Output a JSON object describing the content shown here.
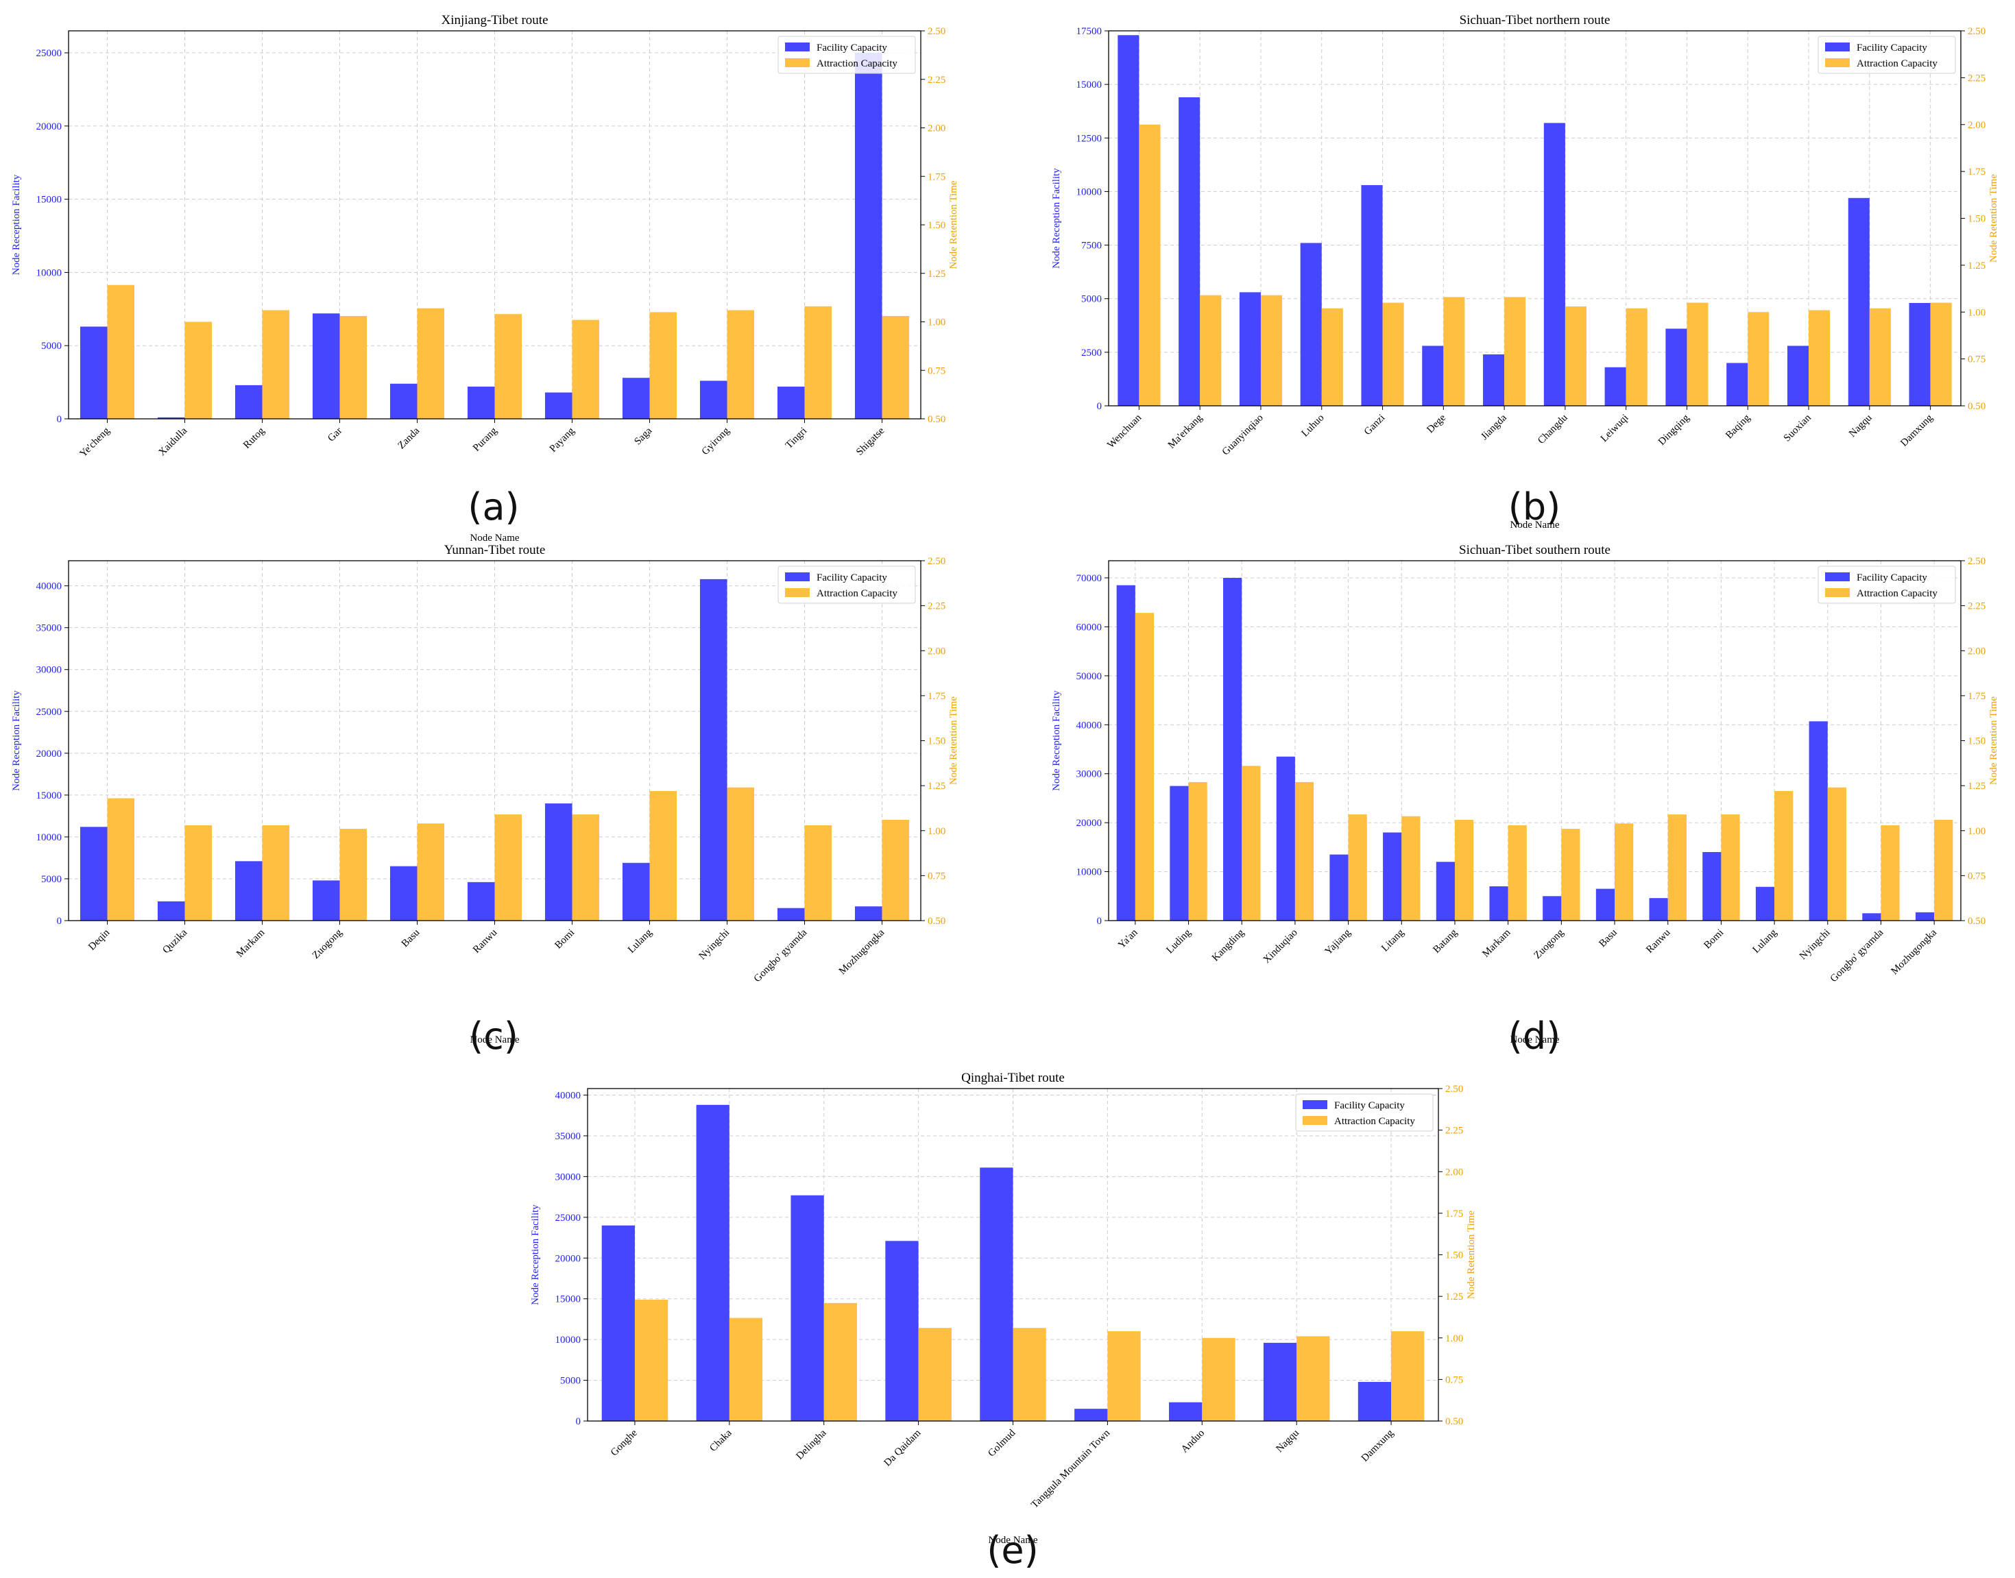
{
  "colors": {
    "facility": "#4646ff",
    "attraction": "#ffbf40",
    "left_axis": "#1f1fff",
    "right_axis": "#f0a000",
    "grid": "#cccccc"
  },
  "chart_data": [
    {
      "type": "bar",
      "panel": "(a)",
      "title": "Xinjiang-Tibet route",
      "xlabel": "Node Name",
      "ylabel": "Node Reception Facility",
      "ylabel_right": "Node Retention Time",
      "ylim": [
        0,
        26500
      ],
      "yticks": [
        0,
        5000,
        10000,
        15000,
        20000,
        25000
      ],
      "ylim_right": [
        0.5,
        2.5
      ],
      "yticks_right": [
        0.5,
        0.75,
        1.0,
        1.25,
        1.5,
        1.75,
        2.0,
        2.25,
        2.5
      ],
      "legend": [
        "Facility Capacity",
        "Attraction Capacity"
      ],
      "legend_position": "top-right",
      "categories": [
        "Ye'cheng",
        "Xaidulla",
        "Rutog",
        "Gar",
        "Zanda",
        "Purang",
        "Payang",
        "Saga",
        "Gyirong",
        "Tingri",
        "Shigatse"
      ],
      "series": [
        {
          "name": "Facility Capacity",
          "axis": "left",
          "values": [
            6300,
            100,
            2300,
            7200,
            2400,
            2200,
            1800,
            2800,
            2600,
            2200,
            25000
          ]
        },
        {
          "name": "Attraction Capacity",
          "axis": "right",
          "values": [
            1.19,
            1.0,
            1.06,
            1.03,
            1.07,
            1.04,
            1.01,
            1.05,
            1.06,
            1.08,
            1.03
          ]
        }
      ]
    },
    {
      "type": "bar",
      "panel": "(b)",
      "title": "Sichuan-Tibet northern route",
      "xlabel": "Node Name",
      "ylabel": "Node Reception Facility",
      "ylabel_right": "Node Retention Time",
      "ylim": [
        0,
        17500
      ],
      "yticks": [
        0,
        2500,
        5000,
        7500,
        10000,
        12500,
        15000,
        17500
      ],
      "ylim_right": [
        0.5,
        2.5
      ],
      "yticks_right": [
        0.5,
        0.75,
        1.0,
        1.25,
        1.5,
        1.75,
        2.0,
        2.25,
        2.5
      ],
      "legend": [
        "Facility Capacity",
        "Attraction Capacity"
      ],
      "legend_position": "top-right",
      "categories": [
        "Wenchuan",
        "Ma'erkang",
        "Guanyinqiao",
        "Luhuo",
        "Ganzi",
        "Dege",
        "Jiangda",
        "Changdu",
        "Leiwuqi",
        "Dingqing",
        "Baqing",
        "Suoxian",
        "Nagqu",
        "Damxung"
      ],
      "series": [
        {
          "name": "Facility Capacity",
          "axis": "left",
          "values": [
            17300,
            14400,
            5300,
            7600,
            10300,
            2800,
            2400,
            13200,
            1800,
            3600,
            2000,
            2800,
            9700,
            4800
          ]
        },
        {
          "name": "Attraction Capacity",
          "axis": "right",
          "values": [
            2.0,
            1.09,
            1.09,
            1.02,
            1.05,
            1.08,
            1.08,
            1.03,
            1.02,
            1.05,
            1.0,
            1.01,
            1.02,
            1.05
          ]
        }
      ]
    },
    {
      "type": "bar",
      "panel": "(c)",
      "title": "Yunnan-Tibet route",
      "xlabel": "Node Name",
      "ylabel": "Node Reception Facility",
      "ylabel_right": "Node Retention Time",
      "ylim": [
        0,
        43000
      ],
      "yticks": [
        0,
        5000,
        10000,
        15000,
        20000,
        25000,
        30000,
        35000,
        40000
      ],
      "ylim_right": [
        0.5,
        2.5
      ],
      "yticks_right": [
        0.5,
        0.75,
        1.0,
        1.25,
        1.5,
        1.75,
        2.0,
        2.25,
        2.5
      ],
      "legend": [
        "Facility Capacity",
        "Attraction Capacity"
      ],
      "legend_position": "top-right",
      "categories": [
        "Deqin",
        "Quzika",
        "Markam",
        "Zuogong",
        "Basu",
        "Ranwu",
        "Bomi",
        "Lulang",
        "Nyingchi",
        "Gongbo' gyamda",
        "Mozhugongka"
      ],
      "series": [
        {
          "name": "Facility Capacity",
          "axis": "left",
          "values": [
            11200,
            2300,
            7100,
            4800,
            6500,
            4600,
            14000,
            6900,
            40800,
            1500,
            1700
          ]
        },
        {
          "name": "Attraction Capacity",
          "axis": "right",
          "values": [
            1.18,
            1.03,
            1.03,
            1.01,
            1.04,
            1.09,
            1.09,
            1.22,
            1.24,
            1.03,
            1.06
          ]
        }
      ]
    },
    {
      "type": "bar",
      "panel": "(d)",
      "title": "Sichuan-Tibet southern route",
      "xlabel": "Node Name",
      "ylabel": "Node Reception Facility",
      "ylabel_right": "Node Retention Time",
      "ylim": [
        0,
        73500
      ],
      "yticks": [
        0,
        10000,
        20000,
        30000,
        40000,
        50000,
        60000,
        70000
      ],
      "ylim_right": [
        0.5,
        2.5
      ],
      "yticks_right": [
        0.5,
        0.75,
        1.0,
        1.25,
        1.5,
        1.75,
        2.0,
        2.25,
        2.5
      ],
      "legend": [
        "Facility Capacity",
        "Attraction Capacity"
      ],
      "legend_position": "top-right",
      "categories": [
        "Ya'an",
        "Luding",
        "Kangding",
        "Xinduqiao",
        "Yajiang",
        "Litang",
        "Batang",
        "Markam",
        "Zuogong",
        "Basu",
        "Ranwu",
        "Bomi",
        "Lulang",
        "Nyingchi",
        "Gongbo' gyamda",
        "Mozhugongka"
      ],
      "series": [
        {
          "name": "Facility Capacity",
          "axis": "left",
          "values": [
            68500,
            27500,
            70000,
            33500,
            13500,
            18000,
            12000,
            7000,
            5000,
            6500,
            4600,
            14000,
            6900,
            40700,
            1500,
            1700
          ]
        },
        {
          "name": "Attraction Capacity",
          "axis": "right",
          "values": [
            2.21,
            1.27,
            1.36,
            1.27,
            1.09,
            1.08,
            1.06,
            1.03,
            1.01,
            1.04,
            1.09,
            1.09,
            1.22,
            1.24,
            1.03,
            1.06
          ]
        }
      ]
    },
    {
      "type": "bar",
      "panel": "(e)",
      "title": "Qinghai-Tibet route",
      "xlabel": "Node Name",
      "ylabel": "Node Reception Facility",
      "ylabel_right": "Node Retention Time",
      "ylim": [
        0,
        40800
      ],
      "yticks": [
        0,
        5000,
        10000,
        15000,
        20000,
        25000,
        30000,
        35000,
        40000
      ],
      "ylim_right": [
        0.5,
        2.5
      ],
      "yticks_right": [
        0.5,
        0.75,
        1.0,
        1.25,
        1.5,
        1.75,
        2.0,
        2.25,
        2.5
      ],
      "legend": [
        "Facility Capacity",
        "Attraction Capacity"
      ],
      "legend_position": "top-right",
      "categories": [
        "Gonghe",
        "Chaka",
        "Delingha",
        "Da Qaidam",
        "Golmud",
        "Tanggula Mountain Town",
        "Anduo",
        "Nagqu",
        "Damxung"
      ],
      "series": [
        {
          "name": "Facility Capacity",
          "axis": "left",
          "values": [
            24000,
            38800,
            27700,
            22100,
            31100,
            1500,
            2300,
            9600,
            4800
          ]
        },
        {
          "name": "Attraction Capacity",
          "axis": "right",
          "values": [
            1.23,
            1.12,
            1.21,
            1.06,
            1.06,
            1.04,
            1.0,
            1.01,
            1.04
          ]
        }
      ]
    }
  ]
}
